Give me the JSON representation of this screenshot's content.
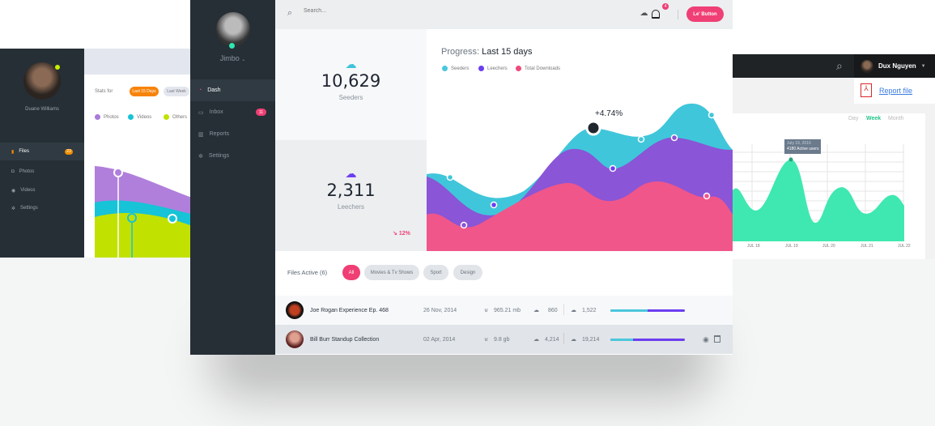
{
  "left_panel": {
    "user": "Duane Williams",
    "stats_for": "Stats for",
    "range_active": "Last 15 Days",
    "range_other": "Last Week",
    "legend": [
      {
        "label": "Photos",
        "color": "#a97bdb"
      },
      {
        "label": "Videos",
        "color": "#17c3d6"
      },
      {
        "label": "Others",
        "color": "#c1e100"
      }
    ],
    "nav": [
      {
        "label": "Files",
        "badge": "23",
        "icon": "file-icon"
      },
      {
        "label": "Photos",
        "icon": "camera-icon"
      },
      {
        "label": "Videos",
        "icon": "play-icon"
      },
      {
        "label": "Settings",
        "icon": "gear-icon"
      }
    ]
  },
  "main": {
    "user": "Jimbo",
    "search_placeholder": "Search...",
    "button": "Le' Button",
    "notification_count": "4",
    "nav": [
      {
        "label": "Dash",
        "icon": "dashboard-icon"
      },
      {
        "label": "Inbox",
        "badge": "11",
        "icon": "inbox-icon"
      },
      {
        "label": "Reports",
        "icon": "chart-icon"
      },
      {
        "label": "Settings",
        "icon": "gear-icon"
      }
    ],
    "seeders": {
      "value": "10,629",
      "label": "Seeders"
    },
    "leechers": {
      "value": "2,311",
      "label": "Leechers",
      "change": "12%"
    },
    "chart": {
      "title_prefix": "Progress:",
      "title": "Last 15 days",
      "annotation": "+4.74%",
      "legend": [
        {
          "label": "Seeders",
          "color": "#4ac7dc"
        },
        {
          "label": "Leechers",
          "color": "#6b3ef0"
        },
        {
          "label": "Total Downloads",
          "color": "#ef4a7d"
        }
      ]
    },
    "files": {
      "title": "Files Active (6)",
      "filters": [
        "All",
        "Movies & Tv Shows",
        "Sport",
        "Design"
      ],
      "rows": [
        {
          "name": "Joe Rogan Experience Ep. 468",
          "date": "26 Nov, 2014",
          "size": "965.21 mb",
          "seeds": "860",
          "leech": "1,522",
          "progress": 0.5
        },
        {
          "name": "Bill Burr Standup Collection",
          "date": "02 Apr, 2014",
          "size": "9.8 gb",
          "seeds": "4,214",
          "leech": "19,214",
          "progress": 0.3
        }
      ]
    }
  },
  "right_panel": {
    "user": "Dux Nguyen",
    "report": "Report file",
    "periods": [
      "Day",
      "Week",
      "Month"
    ],
    "active_period": "Week",
    "tooltip_date": "July 19, 2016",
    "tooltip_value": "4180 Active users",
    "x_labels": [
      "JUL 18",
      "JUL 19",
      "JUL 20",
      "JUL 21",
      "JUL 22"
    ]
  }
}
